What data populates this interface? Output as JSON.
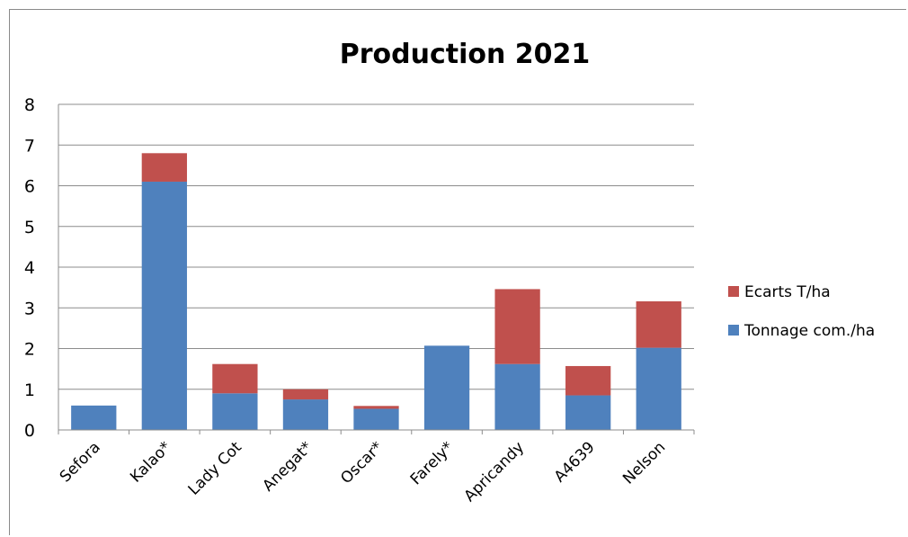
{
  "chart_data": {
    "type": "bar",
    "stacked": true,
    "title": "Production 2021",
    "xlabel": "",
    "ylabel": "",
    "ylim": [
      0,
      8
    ],
    "yticks": [
      0,
      1,
      2,
      3,
      4,
      5,
      6,
      7,
      8
    ],
    "grid": true,
    "legend_position": "right",
    "categories": [
      "Sefora",
      "Kalao*",
      "Lady Cot",
      "Anegat*",
      "Oscar*",
      "Farely*",
      "Apricandy",
      "A4639",
      "Nelson"
    ],
    "series": [
      {
        "name": "Tonnage com./ha",
        "color": "#4f81bd",
        "values": [
          0.6,
          6.1,
          0.9,
          0.75,
          0.52,
          2.07,
          1.62,
          0.85,
          2.02
        ]
      },
      {
        "name": "Ecarts T/ha",
        "color": "#c0504d",
        "values": [
          0,
          0.7,
          0.72,
          0.25,
          0.07,
          0,
          1.84,
          0.72,
          1.14
        ]
      }
    ],
    "legend_order": [
      "Ecarts T/ha",
      "Tonnage com./ha"
    ]
  }
}
